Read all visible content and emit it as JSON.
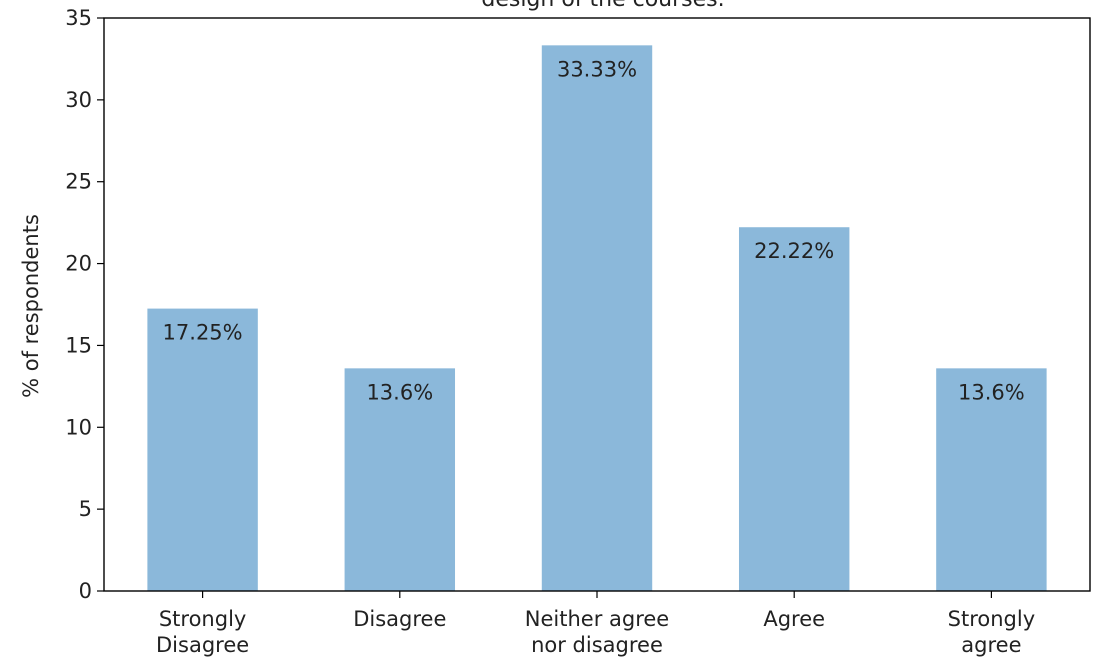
{
  "chart_data": {
    "type": "bar",
    "title": "design of the courses.",
    "xlabel": "",
    "ylabel": "% of respondents",
    "ylim": [
      0,
      35
    ],
    "yticks": [
      0,
      5,
      10,
      15,
      20,
      25,
      30,
      35
    ],
    "categories": [
      [
        "Strongly",
        "Disagree"
      ],
      [
        "Disagree"
      ],
      [
        "Neither agree",
        "nor disagree"
      ],
      [
        "Agree"
      ],
      [
        "Strongly",
        "agree"
      ]
    ],
    "values": [
      17.25,
      13.6,
      33.33,
      22.22,
      13.6
    ],
    "data_labels": [
      "17.25%",
      "13.6%",
      "33.33%",
      "22.22%",
      "13.6%"
    ],
    "bar_color": "#8bb8da",
    "grid": false,
    "legend": "none"
  }
}
